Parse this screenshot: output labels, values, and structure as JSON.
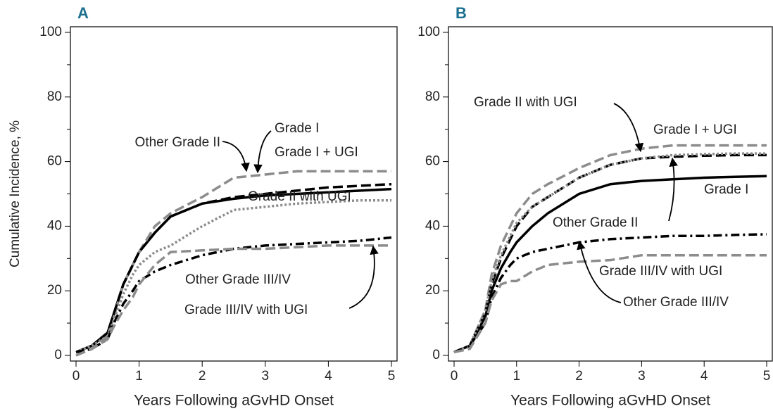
{
  "chart_data": [
    {
      "type": "line",
      "panel_label": "A",
      "ylabel": "Cumulative Incidence, %",
      "xlabel": "Years Following aGvHD Onset",
      "xlim": [
        0,
        5
      ],
      "ylim": [
        0,
        100
      ],
      "xticks": [
        0,
        1,
        2,
        3,
        4,
        5
      ],
      "yticks": [
        0,
        20,
        40,
        60,
        80,
        100
      ],
      "yminorticks": [
        10,
        30,
        50,
        70,
        90
      ],
      "x": [
        0,
        0.25,
        0.5,
        0.6,
        0.75,
        0.9,
        1,
        1.25,
        1.5,
        2,
        2.5,
        3,
        3.5,
        4,
        4.5,
        5
      ],
      "series": [
        {
          "name": "Grade I",
          "color": "#000000",
          "dash": "solid",
          "values": [
            1,
            3,
            7,
            13,
            22,
            28,
            32,
            38,
            43,
            47,
            48.5,
            49.5,
            50,
            50.5,
            51,
            51.5
          ]
        },
        {
          "name": "Grade I + UGI",
          "color": "#8c8c8c",
          "dash": "dashed",
          "values": [
            0,
            2,
            6,
            12,
            22,
            28,
            32,
            40,
            44,
            49,
            55,
            56,
            57,
            57,
            57,
            57
          ]
        },
        {
          "name": "Other Grade II",
          "color": "#000000",
          "dash": "dashed",
          "values": [
            1,
            3,
            7,
            13,
            22,
            28,
            32,
            38,
            43,
            47,
            49,
            50,
            51,
            52,
            52.5,
            53
          ]
        },
        {
          "name": "Grade II with UGI",
          "color": "#8c8c8c",
          "dash": "dotted",
          "values": [
            1,
            3,
            6,
            11,
            19,
            25,
            28,
            32,
            34,
            40,
            45,
            46,
            47,
            47.5,
            48,
            48
          ]
        },
        {
          "name": "Other Grade III/IV",
          "color": "#000000",
          "dash": "dashdot",
          "values": [
            1,
            2,
            5,
            10,
            16,
            20,
            23,
            26,
            28,
            31,
            33,
            34,
            34.5,
            35,
            35.5,
            36.5
          ]
        },
        {
          "name": "Grade III/IV with UGI",
          "color": "#8c8c8c",
          "dash": "dashed",
          "values": [
            0,
            2,
            5,
            9,
            14,
            18,
            22,
            28,
            32,
            32.5,
            33,
            33,
            33.5,
            34,
            34,
            34
          ]
        }
      ]
    },
    {
      "type": "line",
      "panel_label": "B",
      "xlabel": "Years Following aGvHD Onset",
      "xlim": [
        0,
        5
      ],
      "ylim": [
        0,
        100
      ],
      "xticks": [
        0,
        1,
        2,
        3,
        4,
        5
      ],
      "yticks": [
        0,
        20,
        40,
        60,
        80,
        100
      ],
      "yminorticks": [
        10,
        30,
        50,
        70,
        90
      ],
      "x": [
        0,
        0.25,
        0.5,
        0.6,
        0.75,
        0.9,
        1,
        1.25,
        1.5,
        2,
        2.5,
        3,
        3.5,
        4,
        4.5,
        5
      ],
      "series": [
        {
          "name": "Grade I",
          "color": "#000000",
          "dash": "solid",
          "values": [
            1,
            3,
            12,
            20,
            27,
            32,
            35,
            40,
            44,
            50,
            53,
            54,
            54.5,
            55,
            55.3,
            55.5
          ]
        },
        {
          "name": "Grade I + UGI",
          "color": "#8c8c8c",
          "dash": "dashed",
          "values": [
            1,
            3,
            14,
            25,
            34,
            40,
            44,
            50,
            53,
            58,
            62,
            64,
            65,
            65,
            65,
            65
          ]
        },
        {
          "name": "Other Grade II",
          "color": "#000000",
          "dash": "dashed",
          "values": [
            1,
            3,
            13,
            22,
            30,
            36,
            40,
            46,
            49,
            55,
            59,
            61,
            61.5,
            61.8,
            62,
            62
          ]
        },
        {
          "name": "Grade II with UGI",
          "color": "#8c8c8c",
          "dash": "dotted",
          "values": [
            1,
            3,
            14,
            23,
            31,
            37,
            41,
            46,
            49,
            55,
            59,
            61,
            62,
            62.3,
            62.5,
            62.5
          ]
        },
        {
          "name": "Other Grade III/IV",
          "color": "#000000",
          "dash": "dashdot",
          "values": [
            1,
            3,
            10,
            18,
            24,
            28,
            30,
            32,
            33,
            35,
            36,
            36.5,
            37,
            37,
            37.3,
            37.5
          ]
        },
        {
          "name": "Grade III/IV with UGI",
          "color": "#8c8c8c",
          "dash": "dashed",
          "values": [
            1,
            2,
            10,
            17,
            22,
            23,
            23,
            26,
            28,
            29,
            29.5,
            31,
            31,
            31,
            31,
            31
          ]
        }
      ]
    }
  ]
}
